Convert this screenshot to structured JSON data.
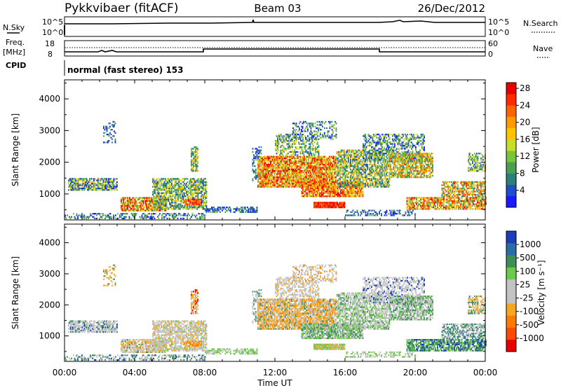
{
  "header": {
    "station": "Pykkvibaer (fitACF)",
    "beam": "Beam 03",
    "date": "26/Dec/2012"
  },
  "status_panels": {
    "nsky_label": "N.Sky",
    "nsearch_label": "N.Search",
    "noise_ticks": [
      "10^5",
      "10^0"
    ],
    "freq_label": "Freq.",
    "freq_unit": "[MHz]",
    "freq_ticks": [
      "18",
      "8"
    ],
    "nave_label": "Nave",
    "nave_ticks": [
      "60",
      "0"
    ],
    "cpid_label": "CPID",
    "cpid_text": "normal (fast stereo) 153"
  },
  "chart_data": [
    {
      "type": "heatmap",
      "quantity": "power",
      "ylabel": "Slant Range [km]",
      "ylim": [
        180,
        4600
      ],
      "y_ticks": [
        1000,
        2000,
        3000,
        4000
      ],
      "xlim": [
        0,
        24
      ],
      "colorbar": {
        "label": "Power [dB]",
        "ticks": [
          "4",
          "8",
          "12",
          "16",
          "20",
          "24",
          "28"
        ],
        "colors": [
          "#1a1aff",
          "#1f4fc8",
          "#2d7f7a",
          "#4aa052",
          "#79c43a",
          "#c8dd2a",
          "#ffc400",
          "#ff9a00",
          "#ff6200",
          "#ff2a00",
          "#e60000"
        ]
      }
    },
    {
      "type": "heatmap",
      "quantity": "velocity",
      "ylabel": "Slant Range [km]",
      "ylim": [
        180,
        4600
      ],
      "y_ticks": [
        1000,
        2000,
        3000,
        4000
      ],
      "xlim": [
        0,
        24
      ],
      "colorbar": {
        "label": "Velocity [m s⁻¹]",
        "ticks": [
          "1000",
          "500",
          "100",
          "25",
          "-25",
          "-100",
          "-500",
          "-1000"
        ],
        "colors": [
          "#1a3fb8",
          "#2a6ea8",
          "#3d8f58",
          "#6ec84a",
          "#c3c3c3",
          "#c3c3c3",
          "#f5a623",
          "#ff7a00",
          "#ff4a00",
          "#e60000"
        ]
      }
    }
  ],
  "x_axis": {
    "ticks": [
      "00:00",
      "04:00",
      "08:00",
      "12:00",
      "16:00",
      "20:00",
      "00:00"
    ],
    "label": "Time UT"
  },
  "colors": {
    "power_blue": "#1a1aff",
    "power_green": "#4aa052",
    "power_orange": "#ff9a00",
    "power_red": "#e60000",
    "velocity_gray": "#c3c3c3",
    "velocity_orange": "#f5a623",
    "velocity_green": "#6ec84a"
  }
}
